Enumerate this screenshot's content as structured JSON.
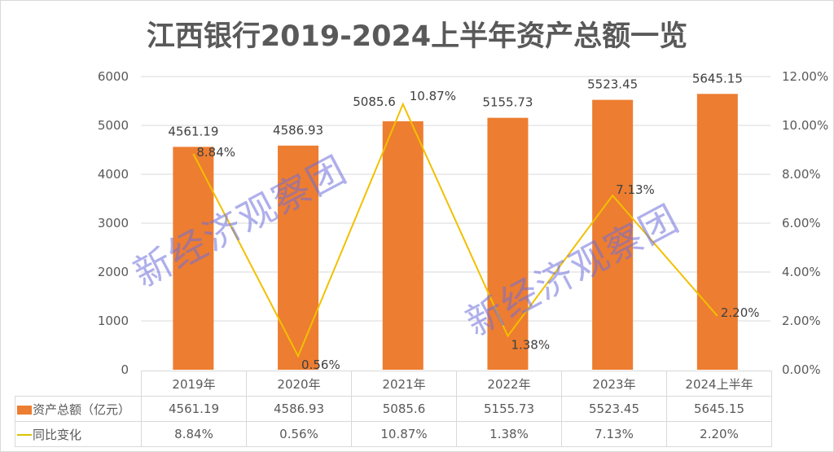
{
  "title": "江西银行2019-2024上半年资产总额一览",
  "watermark": "新经济观察团",
  "chart_data": {
    "type": "bar",
    "title": "江西银行2019-2024上半年资产总额一览",
    "categories": [
      "2019年",
      "2020年",
      "2021年",
      "2022年",
      "2023年",
      "2024上半年"
    ],
    "series": [
      {
        "name": "资产总额（亿元）",
        "type": "bar",
        "axis": "left",
        "color": "#ed7d31",
        "values": [
          4561.19,
          4586.93,
          5085.6,
          5155.73,
          5523.45,
          5645.15
        ],
        "labels": [
          "4561.19",
          "4586.93",
          "5085.6",
          "5155.73",
          "5523.45",
          "5645.15"
        ]
      },
      {
        "name": "同比变化",
        "type": "line",
        "axis": "right",
        "color": "#f2c000",
        "values": [
          8.84,
          0.56,
          10.87,
          1.38,
          7.13,
          2.2
        ],
        "labels": [
          "8.84%",
          "0.56%",
          "10.87%",
          "1.38%",
          "7.13%",
          "2.20%"
        ]
      }
    ],
    "left_axis": {
      "min": 0,
      "max": 6000,
      "ticks": [
        "0",
        "1000",
        "2000",
        "3000",
        "4000",
        "5000",
        "6000"
      ]
    },
    "right_axis": {
      "min": 0,
      "max": 12,
      "ticks": [
        "0.00%",
        "2.00%",
        "4.00%",
        "6.00%",
        "8.00%",
        "10.00%",
        "12.00%"
      ]
    },
    "grid": true,
    "legend_position": "data-table",
    "xlabel": "",
    "ylabel": ""
  },
  "table": {
    "header": [
      "2019年",
      "2020年",
      "2021年",
      "2022年",
      "2023年",
      "2024上半年"
    ],
    "rows": [
      {
        "label": "资产总额（亿元）",
        "values": [
          "4561.19",
          "4586.93",
          "5085.6",
          "5155.73",
          "5523.45",
          "5645.15"
        ]
      },
      {
        "label": "同比变化",
        "values": [
          "8.84%",
          "0.56%",
          "10.87%",
          "1.38%",
          "7.13%",
          "2.20%"
        ]
      }
    ]
  }
}
